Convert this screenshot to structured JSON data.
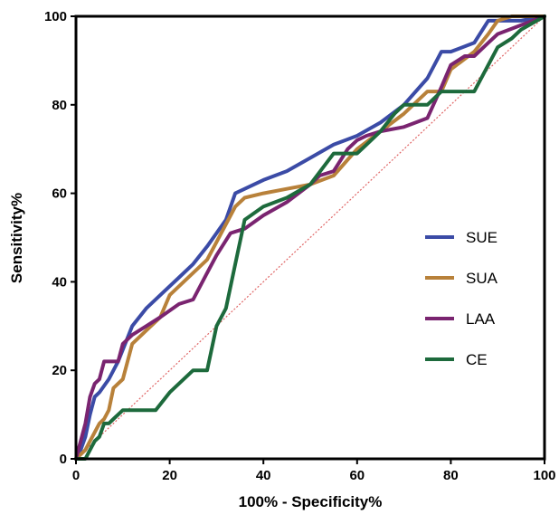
{
  "chart_data": {
    "type": "line",
    "xlabel": "100% - Specificity%",
    "ylabel": "Sensitivity%",
    "xlim": [
      0,
      100
    ],
    "ylim": [
      0,
      100
    ],
    "xticks": [
      "0",
      "20",
      "40",
      "60",
      "80",
      "100"
    ],
    "yticks": [
      "0",
      "20",
      "40",
      "60",
      "80",
      "100"
    ],
    "grid": false,
    "legend_position": "right",
    "reference_line": {
      "x": [
        0,
        100
      ],
      "y": [
        0,
        100
      ],
      "color": "#e06666",
      "style": "dotted"
    },
    "series": [
      {
        "name": "SUE",
        "color": "#3b4ba6",
        "x": [
          0,
          1,
          2,
          3,
          4,
          5,
          7,
          9,
          12,
          15,
          18,
          22,
          25,
          28,
          30,
          32,
          34,
          36,
          40,
          45,
          50,
          55,
          60,
          65,
          70,
          75,
          78,
          80,
          85,
          88,
          92,
          95,
          100
        ],
        "y": [
          0,
          2,
          5,
          10,
          14,
          15,
          18,
          22,
          30,
          34,
          37,
          41,
          44,
          48,
          51,
          54,
          60,
          61,
          63,
          65,
          68,
          71,
          73,
          76,
          80,
          86,
          92,
          92,
          94,
          99,
          99,
          99,
          100
        ]
      },
      {
        "name": "SUA",
        "color": "#b8813a",
        "x": [
          0,
          2,
          3,
          4,
          5,
          6,
          7,
          8,
          10,
          12,
          15,
          18,
          20,
          25,
          28,
          30,
          34,
          36,
          40,
          45,
          50,
          55,
          60,
          65,
          70,
          75,
          78,
          80,
          85,
          88,
          90,
          93,
          95,
          100
        ],
        "y": [
          0,
          2,
          4,
          6,
          8,
          9,
          11,
          16,
          18,
          26,
          29,
          32,
          37,
          42,
          45,
          49,
          57,
          59,
          60,
          61,
          62,
          64,
          70,
          74,
          78,
          83,
          83,
          88,
          92,
          96,
          99,
          100,
          100,
          100
        ]
      },
      {
        "name": "LAA",
        "color": "#7a2470",
        "x": [
          0,
          1,
          2,
          3,
          4,
          5,
          6,
          7,
          9,
          10,
          12,
          15,
          18,
          22,
          25,
          28,
          30,
          33,
          36,
          40,
          45,
          50,
          52,
          55,
          58,
          60,
          62,
          65,
          70,
          75,
          78,
          80,
          83,
          85,
          88,
          90,
          95,
          100
        ],
        "y": [
          0,
          4,
          8,
          14,
          17,
          18,
          22,
          22,
          22,
          26,
          28,
          30,
          32,
          35,
          36,
          42,
          46,
          51,
          52,
          55,
          58,
          62,
          64,
          65,
          70,
          72,
          73,
          74,
          75,
          77,
          84,
          89,
          91,
          91,
          94,
          96,
          98,
          100
        ]
      },
      {
        "name": "CE",
        "color": "#1d6a3c",
        "x": [
          0,
          2,
          3,
          4,
          5,
          6,
          7,
          8,
          10,
          11,
          13,
          17,
          20,
          25,
          28,
          30,
          32,
          34,
          36,
          40,
          45,
          50,
          55,
          60,
          62,
          65,
          68,
          70,
          72,
          75,
          78,
          80,
          85,
          90,
          93,
          95,
          100
        ],
        "y": [
          0,
          0,
          2,
          4,
          5,
          8,
          8,
          9,
          11,
          11,
          11,
          11,
          15,
          20,
          20,
          30,
          34,
          44,
          54,
          57,
          59,
          62,
          69,
          69,
          71,
          74,
          78,
          80,
          80,
          80,
          83,
          83,
          83,
          93,
          95,
          97,
          100
        ]
      }
    ]
  }
}
